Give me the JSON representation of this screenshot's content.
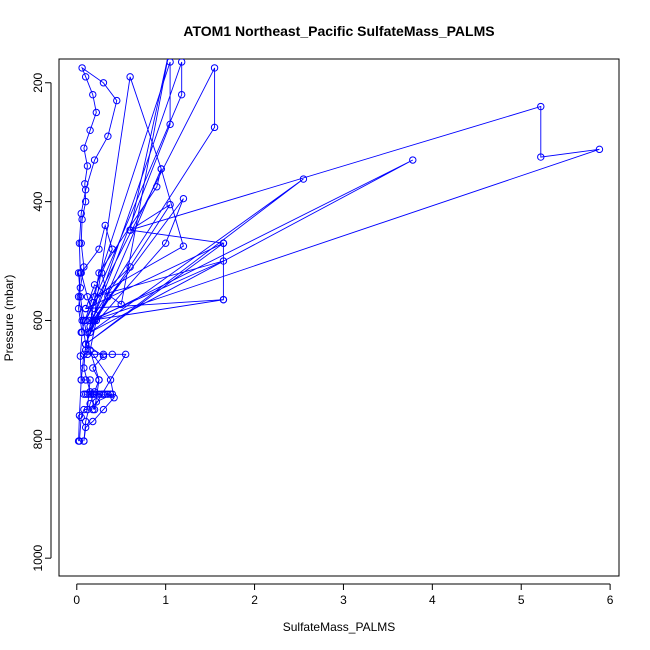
{
  "chart_data": {
    "type": "line",
    "title": "ATOM1 Northeast_Pacific SulfateMass_PALMS",
    "xlabel": "SulfateMass_PALMS",
    "ylabel": "Pressure (mbar)",
    "xlim": [
      -0.2,
      6.1
    ],
    "ylim": [
      1030,
      160
    ],
    "y_reversed": true,
    "x_ticks": [
      0,
      1,
      2,
      3,
      4,
      5,
      6
    ],
    "y_ticks": [
      200,
      400,
      600,
      800,
      1000
    ],
    "grid": false,
    "colors": {
      "series": "#0000ff",
      "axis": "#000000"
    },
    "series": [
      {
        "x": [
          0.02,
          0.03,
          0.05,
          0.04,
          0.06,
          0.02,
          0.04,
          0.08,
          0.05,
          0.06,
          0.1,
          0.09,
          0.12,
          0.08,
          0.15,
          0.22,
          0.18,
          0.1,
          0.06,
          0.3,
          0.45,
          0.35,
          0.2,
          0.1,
          0.05,
          0.03,
          0.04,
          0.02,
          0.06,
          0.1,
          0.08,
          0.15,
          0.2,
          0.25,
          0.15,
          0.08,
          0.04,
          0.02
        ],
        "y": [
          803,
          760,
          700,
          660,
          620,
          580,
          545,
          510,
          470,
          430,
          400,
          370,
          340,
          310,
          280,
          250,
          220,
          190,
          175,
          200,
          230,
          290,
          330,
          380,
          420,
          470,
          520,
          560,
          600,
          640,
          680,
          720,
          750,
          700,
          650,
          600,
          560,
          520
        ]
      },
      {
        "x": [
          0.08,
          0.1,
          0.15,
          0.2,
          0.25,
          0.18,
          0.3,
          0.1,
          0.2,
          0.12,
          0.05,
          0.25,
          0.32,
          0.4,
          0.28,
          0.35,
          0.22,
          0.15,
          0.38,
          0.42,
          0.3,
          0.18,
          0.1,
          0.08
        ],
        "y": [
          803,
          770,
          740,
          720,
          700,
          680,
          660,
          640,
          600,
          560,
          520,
          480,
          440,
          480,
          520,
          560,
          600,
          650,
          700,
          730,
          750,
          770,
          780,
          803
        ]
      },
      {
        "x": [
          0.05,
          1.05,
          1.05,
          0.15,
          1.18,
          1.18,
          0.1,
          1.55,
          1.55,
          0.2,
          0.6,
          0.95,
          0.9,
          0.25,
          0.1
        ],
        "y": [
          620,
          165,
          270,
          610,
          165,
          220,
          600,
          175,
          275,
          590,
          190,
          345,
          375,
          520,
          650
        ]
      },
      {
        "x": [
          0.1,
          1.65,
          1.65,
          0.15,
          1.65,
          0.2,
          1.2,
          0.95,
          0.1,
          1.65,
          0.6,
          1.05,
          0.12,
          1.0,
          1.2,
          0.18,
          0.6,
          0.18
        ],
        "y": [
          580,
          470,
          565,
          600,
          500,
          560,
          475,
          345,
          640,
          470,
          448,
          405,
          620,
          470,
          395,
          600,
          510,
          570
        ]
      },
      {
        "x": [
          0.1,
          2.55,
          0.15,
          3.78,
          0.18,
          5.88,
          5.22,
          5.22,
          0.6,
          1.05,
          0.5,
          0.2,
          0.1,
          1.65
        ],
        "y": [
          640,
          362,
          620,
          330,
          600,
          312,
          325,
          240,
          448,
          140,
          573,
          540,
          580,
          565
        ]
      },
      {
        "x": [
          0.08,
          0.1,
          0.12,
          0.15,
          0.18,
          0.2,
          0.22,
          0.25,
          0.28,
          0.3,
          0.32,
          0.35,
          0.38,
          0.4,
          0.22,
          0.18,
          0.55,
          0.4,
          0.3,
          0.2,
          0.12,
          0.08,
          0.05,
          0.1,
          0.15,
          0.12,
          0.08,
          0.05,
          0.03
        ],
        "y": [
          724,
          724,
          724,
          724,
          724,
          724,
          724,
          724,
          724,
          724,
          724,
          724,
          724,
          724,
          737,
          750,
          657,
          657,
          657,
          657,
          657,
          657,
          700,
          700,
          700,
          750,
          750,
          763,
          803
        ]
      }
    ]
  }
}
